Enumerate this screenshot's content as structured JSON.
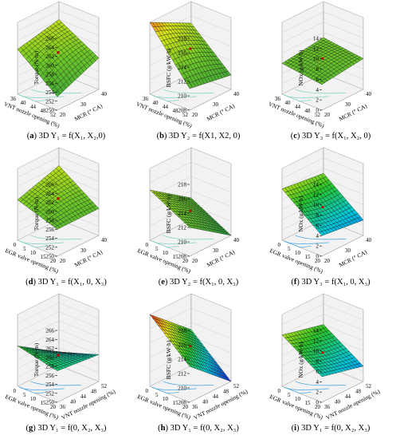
{
  "chart_data": [
    {
      "id": "a",
      "type": "surface",
      "caption_letter": "a",
      "caption_text": "3D Y₁ = f(X₁, X₂,0)",
      "zlabel": "Torque (N·m)",
      "zlim": [
        250,
        266
      ],
      "zticks": [
        "250",
        "252",
        "254",
        "256",
        "258",
        "260",
        "262",
        "264",
        "266"
      ],
      "xlabel": "VNT nozzle opening (%)",
      "xticks": [
        "36",
        "40",
        "44",
        "48",
        "52"
      ],
      "ylabel": "MCR (° CA)",
      "yticks": [
        "20",
        "30",
        "40"
      ],
      "corners": [
        253,
        260,
        257,
        262
      ],
      "curv": 1.5,
      "cmap": "gy"
    },
    {
      "id": "b",
      "type": "surface",
      "caption_letter": "b",
      "caption_text": "3D Y₂ = f(X1, X2, 0)",
      "zlabel": "BSFC (g/kW·h)",
      "zlim": [
        208,
        218
      ],
      "zticks": [
        "208",
        "210",
        "212",
        "214",
        "216",
        "218"
      ],
      "xlabel": "VNT nozzle opening (%)",
      "xticks": [
        "36",
        "40",
        "44",
        "48",
        "52"
      ],
      "ylabel": "MCR (° CA)",
      "yticks": [
        "20",
        "30",
        "40"
      ],
      "corners": [
        211,
        218,
        210,
        215
      ],
      "curv": 1.0,
      "cmap": "gy"
    },
    {
      "id": "c",
      "type": "surface",
      "caption_letter": "c",
      "caption_text": "3D Y₃ = f(X₁, X₂, 0)",
      "zlabel": "NOx (g/kW·h)",
      "zlim": [
        0,
        14
      ],
      "zticks": [
        "0",
        "2",
        "4",
        "6",
        "8",
        "10",
        "12",
        "14"
      ],
      "xlabel": "VNT nozzle opening (%)",
      "xticks": [
        "36",
        "40",
        "44",
        "48",
        "52"
      ],
      "ylabel": "MCR (° CA)",
      "yticks": [
        "20",
        "30",
        "40"
      ],
      "corners": [
        5,
        6,
        6,
        7
      ],
      "curv": 1.0,
      "cmap": "gy"
    },
    {
      "id": "d",
      "type": "surface",
      "caption_letter": "d",
      "caption_text": "3D Y₁ = f(X₁, 0, X₃)",
      "zlabel": "Torque (N·m)",
      "zlim": [
        250,
        266
      ],
      "zticks": [
        "250",
        "252",
        "254",
        "256",
        "258",
        "260",
        "262",
        "264",
        "266"
      ],
      "xlabel": "EGR valve opening (%)",
      "xticks": [
        "0",
        "5",
        "10",
        "15",
        "20"
      ],
      "ylabel": "MCR (° CA)",
      "yticks": [
        "20",
        "30",
        "40"
      ],
      "corners": [
        256,
        259,
        256,
        262
      ],
      "curv": 1.0,
      "cmap": "gy"
    },
    {
      "id": "e",
      "type": "surface",
      "caption_letter": "e",
      "caption_text": "3D Y₂ = f(X₁, 0, X₃)",
      "zlabel": "BSFC (g/kW·h)",
      "zlim": [
        208,
        218
      ],
      "zticks": [
        "208",
        "210",
        "212",
        "214",
        "216",
        "218"
      ],
      "xlabel": "EGR valve opening (%)",
      "xticks": [
        "0",
        "5",
        "10",
        "15",
        "20"
      ],
      "ylabel": "MCR (° CA)",
      "yticks": [
        "20",
        "30",
        "40"
      ],
      "corners": [
        212,
        215,
        208,
        211
      ],
      "curv": 0.5,
      "cmap": "gy"
    },
    {
      "id": "f",
      "type": "surface",
      "caption_letter": "f",
      "caption_text": "3D Y₃ = f(X₁, 0, X₃)",
      "zlabel": "NOx (g/kW·h)",
      "zlim": [
        0,
        14
      ],
      "zticks": [
        "0",
        "2",
        "4",
        "6",
        "8",
        "10",
        "12",
        "14"
      ],
      "xlabel": "EGR valve opening (%)",
      "xticks": [
        "0",
        "5",
        "10",
        "15",
        "20"
      ],
      "ylabel": "MCR (° CA)",
      "yticks": [
        "20",
        "30",
        "40"
      ],
      "corners": [
        4,
        10,
        3,
        9
      ],
      "curv": -1.0,
      "cmap": "jet"
    },
    {
      "id": "g",
      "type": "surface",
      "caption_letter": "g",
      "caption_text": "3D Y₁ = f(0, X₂, X₃)",
      "zlabel": "Torque (N·m)",
      "zlim": [
        250,
        266
      ],
      "zticks": [
        "250",
        "252",
        "254",
        "256",
        "258",
        "260",
        "262",
        "264",
        "266"
      ],
      "xlabel": "EGR valve opening (%)",
      "xticks": [
        "0",
        "5",
        "10",
        "15",
        "20"
      ],
      "ylabel": "VNT nozzle opening (%)",
      "yticks": [
        "36",
        "40",
        "44",
        "48",
        "52"
      ],
      "corners": [
        257,
        259,
        256,
        253
      ],
      "curv": 0.3,
      "cmap": "jet"
    },
    {
      "id": "h",
      "type": "surface",
      "caption_letter": "h",
      "caption_text": "3D Y₁ = f(0, X₂, X₃)",
      "zlabel": "BSFC (g/kW·h)",
      "zlim": [
        208,
        218
      ],
      "zticks": [
        "208",
        "210",
        "212",
        "214",
        "216",
        "218"
      ],
      "xlabel": "EGR valve opening (%)",
      "xticks": [
        "0",
        "5",
        "10",
        "15",
        "20"
      ],
      "ylabel": "VNT nozzle opening (%)",
      "yticks": [
        "36",
        "40",
        "44",
        "48",
        "52"
      ],
      "corners": [
        213,
        218,
        208,
        213
      ],
      "curv": 0.5,
      "cmap": "jet"
    },
    {
      "id": "i",
      "type": "surface",
      "caption_letter": "i",
      "caption_text": "3D Y₁ = f(0, X₂, X₃)",
      "zlabel": "NOx (g/kW·h)",
      "zlim": [
        0,
        14
      ],
      "zticks": [
        "0",
        "2",
        "4",
        "6",
        "8",
        "10",
        "12",
        "14"
      ],
      "xlabel": "EGR valve opening (%)",
      "xticks": [
        "0",
        "5",
        "10",
        "15",
        "20"
      ],
      "ylabel": "VNT nozzle opening (%)",
      "yticks": [
        "36",
        "40",
        "44",
        "48",
        "52"
      ],
      "corners": [
        5,
        10,
        3,
        8
      ],
      "curv": -0.8,
      "cmap": "jet"
    }
  ]
}
